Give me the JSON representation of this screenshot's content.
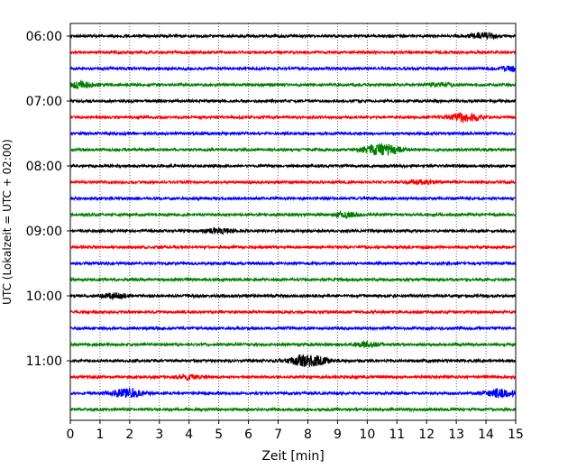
{
  "chart_data": {
    "type": "line",
    "title": "",
    "xlabel": "Zeit  [min]",
    "ylabel": "UTC (Lokalzeit = UTC + 02:00)",
    "xlim": [
      0,
      15
    ],
    "x_ticks": [
      0,
      1,
      2,
      3,
      4,
      5,
      6,
      7,
      8,
      9,
      10,
      11,
      12,
      13,
      14,
      15
    ],
    "x_tick_labels": [
      "0",
      "1",
      "2",
      "3",
      "4",
      "5",
      "6",
      "7",
      "8",
      "9",
      "10",
      "11",
      "12",
      "13",
      "14",
      "15"
    ],
    "x_grid": true,
    "y_tick_labels": [
      "06:00",
      "07:00",
      "08:00",
      "09:00",
      "10:00",
      "11:00"
    ],
    "y_tick_trace_index": [
      0,
      4,
      8,
      12,
      16,
      20
    ],
    "colors": [
      "#000000",
      "#ff0000",
      "#0000ff",
      "#008000"
    ],
    "traces": [
      {
        "start": "06:00",
        "color": "#000000",
        "events": [
          {
            "t": 13.9,
            "amp": 3.0
          }
        ]
      },
      {
        "start": "06:15",
        "color": "#ff0000",
        "events": []
      },
      {
        "start": "06:30",
        "color": "#0000ff",
        "events": [
          {
            "t": 14.9,
            "amp": 2.5
          }
        ]
      },
      {
        "start": "06:45",
        "color": "#008000",
        "events": [
          {
            "t": 0.3,
            "amp": 3.0
          },
          {
            "t": 12.5,
            "amp": 1.5
          }
        ]
      },
      {
        "start": "07:00",
        "color": "#000000",
        "events": []
      },
      {
        "start": "07:15",
        "color": "#ff0000",
        "events": [
          {
            "t": 13.3,
            "amp": 4.5
          }
        ]
      },
      {
        "start": "07:30",
        "color": "#0000ff",
        "events": []
      },
      {
        "start": "07:45",
        "color": "#008000",
        "events": [
          {
            "t": 10.5,
            "amp": 6.0
          }
        ]
      },
      {
        "start": "08:00",
        "color": "#000000",
        "events": []
      },
      {
        "start": "08:15",
        "color": "#ff0000",
        "events": [
          {
            "t": 11.8,
            "amp": 2.0
          }
        ]
      },
      {
        "start": "08:30",
        "color": "#0000ff",
        "events": []
      },
      {
        "start": "08:45",
        "color": "#008000",
        "events": [
          {
            "t": 9.3,
            "amp": 2.5
          }
        ]
      },
      {
        "start": "09:00",
        "color": "#000000",
        "events": [
          {
            "t": 5.0,
            "amp": 2.5
          }
        ]
      },
      {
        "start": "09:15",
        "color": "#ff0000",
        "events": []
      },
      {
        "start": "09:30",
        "color": "#0000ff",
        "events": []
      },
      {
        "start": "09:45",
        "color": "#008000",
        "events": []
      },
      {
        "start": "10:00",
        "color": "#000000",
        "events": [
          {
            "t": 1.5,
            "amp": 2.5
          }
        ]
      },
      {
        "start": "10:15",
        "color": "#ff0000",
        "events": []
      },
      {
        "start": "10:30",
        "color": "#0000ff",
        "events": []
      },
      {
        "start": "10:45",
        "color": "#008000",
        "events": [
          {
            "t": 10.0,
            "amp": 2.5
          }
        ]
      },
      {
        "start": "11:00",
        "color": "#000000",
        "events": [
          {
            "t": 8.0,
            "amp": 6.5
          }
        ]
      },
      {
        "start": "11:15",
        "color": "#ff0000",
        "events": [
          {
            "t": 4.0,
            "amp": 2.0
          }
        ]
      },
      {
        "start": "11:30",
        "color": "#0000ff",
        "events": [
          {
            "t": 1.9,
            "amp": 4.5
          },
          {
            "t": 14.5,
            "amp": 4.0
          }
        ]
      },
      {
        "start": "11:45",
        "color": "#008000",
        "events": []
      }
    ]
  }
}
